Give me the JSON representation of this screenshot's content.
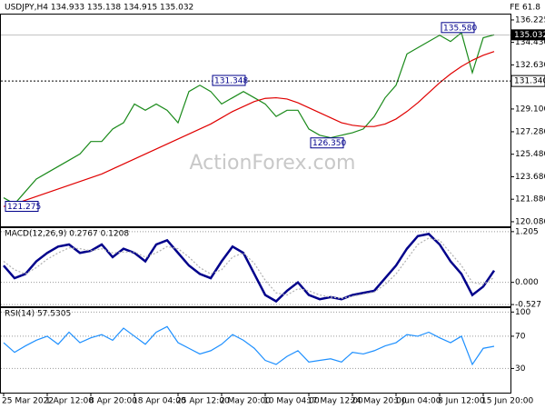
{
  "chart_data": [
    {
      "type": "line",
      "title": "USDJPY,H4 134.933 135.138 134.915 135.032",
      "corner_label": "FE 61.8",
      "watermark": "ActionForex.com",
      "series": [
        {
          "color": "#1a8a1a",
          "values": [
            122,
            121.5,
            122.5,
            123.5,
            124,
            124.5,
            125,
            125.5,
            126.5,
            126.5,
            127.5,
            128,
            129.5,
            129,
            129.5,
            129,
            128,
            130.5,
            131,
            130.5,
            129.5,
            130,
            130.5,
            130,
            129.5,
            128.5,
            129,
            129,
            127.5,
            127,
            126.8,
            127,
            127.2,
            127.5,
            128.5,
            130,
            131,
            133.5,
            134,
            134.5,
            135,
            134.5,
            135.2,
            132,
            134.8,
            135.032
          ]
        },
        {
          "color": "#e00000",
          "values": [
            121.3,
            121.5,
            121.8,
            122.1,
            122.4,
            122.7,
            123.0,
            123.3,
            123.6,
            123.9,
            124.3,
            124.7,
            125.1,
            125.5,
            125.9,
            126.3,
            126.7,
            127.1,
            127.5,
            127.9,
            128.4,
            128.9,
            129.3,
            129.7,
            129.95,
            130.0,
            129.9,
            129.6,
            129.2,
            128.8,
            128.4,
            128.0,
            127.8,
            127.7,
            127.7,
            127.9,
            128.3,
            128.9,
            129.6,
            130.4,
            131.2,
            131.9,
            132.5,
            133.0,
            133.4,
            133.7
          ]
        }
      ],
      "ylim": [
        119.64,
        136.73
      ],
      "yticks": [
        136.225,
        {
          "value": 134.43,
          "label": "134.430"
        },
        {
          "value": 132.63,
          "label": "132.630"
        },
        {
          "value": 129.1,
          "label": "129.100"
        },
        {
          "value": 127.28,
          "label": "127.280"
        },
        {
          "value": 125.48,
          "label": "125.480"
        },
        {
          "value": 123.68,
          "label": "123.680"
        },
        {
          "value": 121.88,
          "label": "121.880"
        },
        {
          "value": 120.08,
          "label": "120.080"
        }
      ],
      "level": {
        "value": 131.34,
        "label": "131.340"
      },
      "current_price": 135.032,
      "annotations": [
        {
          "value": 121.275,
          "label": "121.275"
        },
        {
          "value": 131.348,
          "label": "131.348"
        },
        {
          "value": 126.35,
          "label": "126.350"
        },
        {
          "value": 135.58,
          "label": "135.580"
        }
      ],
      "grid": false
    },
    {
      "type": "line",
      "title": "MACD(12,26,9) 0.2767 0.1208",
      "series": [
        {
          "color": "#00008b",
          "values": [
            0.4,
            0.1,
            0.2,
            0.5,
            0.7,
            0.85,
            0.9,
            0.7,
            0.75,
            0.9,
            0.6,
            0.8,
            0.7,
            0.5,
            0.9,
            1.0,
            0.7,
            0.4,
            0.2,
            0.1,
            0.5,
            0.85,
            0.7,
            0.2,
            -0.3,
            -0.45,
            -0.2,
            0.0,
            -0.3,
            -0.4,
            -0.35,
            -0.4,
            -0.3,
            -0.25,
            -0.2,
            0.1,
            0.4,
            0.8,
            1.1,
            1.15,
            0.9,
            0.5,
            0.2,
            -0.3,
            -0.1,
            0.28
          ]
        },
        {
          "color": "#b0b0b0",
          "values": [
            0.5,
            0.3,
            0.2,
            0.35,
            0.55,
            0.7,
            0.82,
            0.8,
            0.75,
            0.8,
            0.7,
            0.72,
            0.72,
            0.6,
            0.7,
            0.85,
            0.8,
            0.6,
            0.35,
            0.2,
            0.3,
            0.6,
            0.7,
            0.45,
            0.05,
            -0.25,
            -0.3,
            -0.15,
            -0.2,
            -0.3,
            -0.35,
            -0.38,
            -0.33,
            -0.28,
            -0.23,
            -0.05,
            0.2,
            0.55,
            0.9,
            1.05,
            1.0,
            0.7,
            0.4,
            0.0,
            -0.05,
            0.12
          ]
        }
      ],
      "ylim": [
        -0.59,
        1.31
      ],
      "yticks": [
        1.205,
        {
          "value": 0,
          "label": "0.000"
        },
        -0.527
      ],
      "grid": true
    },
    {
      "type": "line",
      "title": "RSI(14) 57.5305",
      "series": [
        {
          "color": "#1e90ff",
          "values": [
            62,
            50,
            58,
            65,
            70,
            60,
            75,
            62,
            68,
            72,
            65,
            80,
            70,
            60,
            75,
            82,
            62,
            55,
            48,
            52,
            60,
            72,
            65,
            55,
            40,
            35,
            45,
            52,
            38,
            40,
            42,
            38,
            50,
            48,
            52,
            58,
            62,
            72,
            70,
            75,
            68,
            62,
            70,
            35,
            55,
            57.53
          ]
        }
      ],
      "ylim": [
        0,
        106
      ],
      "yticks": [
        100,
        70,
        30
      ],
      "grid": true,
      "categories": [
        "25 Mar 2022",
        null,
        null,
        null,
        "1 Apr 12:00",
        null,
        null,
        null,
        "8 Apr 20:00",
        null,
        null,
        null,
        "18 Apr 04:00",
        null,
        null,
        null,
        "25 Apr 12:00",
        null,
        null,
        null,
        "2 May 20:00",
        null,
        null,
        null,
        "10 May 04:00",
        null,
        null,
        null,
        "17 May 12:00",
        null,
        null,
        null,
        "24 May 20:00",
        null,
        null,
        null,
        "1 Jun 04:00",
        null,
        null,
        null,
        "8 Jun 12:00",
        null,
        null,
        null,
        "15 Jun 20:00",
        null
      ]
    }
  ]
}
